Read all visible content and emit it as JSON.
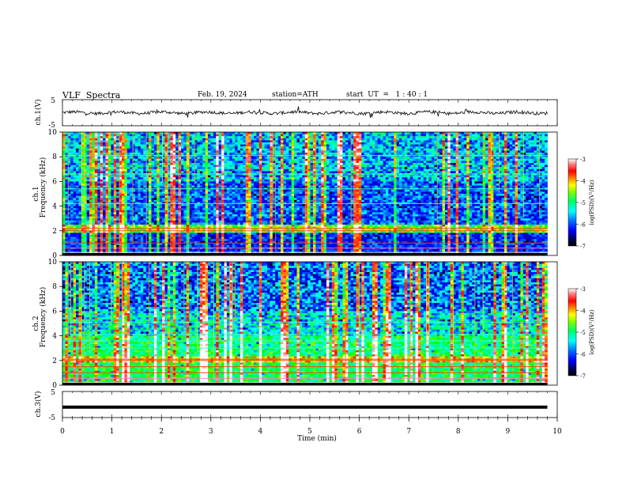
{
  "header": {
    "title": "VLF  Spectra",
    "date": "Feb. 19, 2024",
    "station": "station=ATH",
    "start_ut": "start  UT  =   1 : 40 : 1"
  },
  "chart_data": [
    {
      "type": "line",
      "panel": "ch1-waveform",
      "ylabel": "ch.1(V)",
      "yticks": [
        "5",
        "-5"
      ],
      "ylim": [
        -5,
        5
      ],
      "xlim": [
        0,
        10
      ],
      "series": [
        {
          "values_description_free": true,
          "x_end": 9.8,
          "level": 0.0
        }
      ]
    },
    {
      "type": "heatmap",
      "panel": "ch1-spectrogram",
      "ylabel_channel": "ch.1",
      "ylabel": "Frequency  (kHz)",
      "yticks": [
        "0",
        "2",
        "4",
        "6",
        "8",
        "10"
      ],
      "ylim": [
        0,
        10
      ],
      "xlim": [
        0,
        10
      ],
      "colorbar": {
        "label": "log(PSD)(V²/Hz)",
        "ticks": [
          "-3",
          "-4",
          "-5",
          "-6",
          "-7"
        ],
        "range": [
          -7,
          -3
        ]
      }
    },
    {
      "type": "heatmap",
      "panel": "ch2-spectrogram",
      "ylabel_channel": "ch.2",
      "ylabel": "Frequency  (kHz)",
      "yticks": [
        "0",
        "2",
        "4",
        "6",
        "8",
        "10"
      ],
      "ylim": [
        0,
        10
      ],
      "xlim": [
        0,
        10
      ],
      "colorbar": {
        "label": "log(PSD)(V²/Hz)",
        "ticks": [
          "-3",
          "-4",
          "-5",
          "-6",
          "-7"
        ],
        "range": [
          -7,
          -3
        ]
      }
    },
    {
      "type": "line",
      "panel": "ch3-waveform",
      "ylabel": "ch.3(V)",
      "yticks": [
        "5",
        "-5"
      ],
      "ylim": [
        -5,
        5
      ],
      "xlim": [
        0,
        10
      ],
      "series": [
        {
          "x_end": 9.8,
          "level": -1.0
        }
      ]
    }
  ],
  "xaxis": {
    "label": "Time  (min)",
    "ticks": [
      "0",
      "1",
      "2",
      "3",
      "4",
      "5",
      "6",
      "7",
      "8",
      "9",
      "10"
    ]
  },
  "colors": {
    "ch1_trace": "#000000",
    "ch3_trace": "#000000",
    "colormap": [
      "#000000",
      "#000080",
      "#0000ff",
      "#0080ff",
      "#00ffff",
      "#00ff80",
      "#00ff00",
      "#ffff00",
      "#ff8000",
      "#ff0000",
      "#ff8080",
      "#ffffff"
    ]
  }
}
